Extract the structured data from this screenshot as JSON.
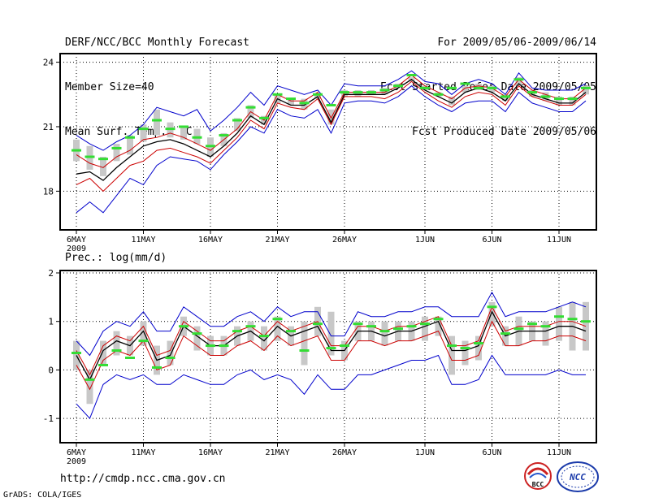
{
  "header": {
    "left": [
      "DERF/NCC/BCC Monthly Forecast",
      "Member Size=40",
      "Mean Surf. Temp.: °C"
    ],
    "right": [
      "For 2009/05/06-2009/06/14",
      "Fcst Started Refer Date 2009/05/05",
      "Fcst Produced Date 2009/05/06"
    ]
  },
  "prec_label": "Prec.: log(mm/d)",
  "footer": {
    "url": "http://cmdp.ncc.cma.gov.cn",
    "credit": "GrADS: COLA/IGES"
  },
  "logos": {
    "bcc": "BCC",
    "ncc": "NCC"
  },
  "colors": {
    "ensemble_max": "#0000cc",
    "ensemble_min": "#0000cc",
    "mean": "#000000",
    "spread": "#cc0000",
    "box": "#c8c8c8",
    "observed": "#33dd33"
  },
  "chart_data": [
    {
      "type": "line",
      "title": "Mean Surf. Temp.: °C",
      "xlabel": "",
      "ylabel": "",
      "x_ticks": [
        {
          "day": 0,
          "label": "6MAY",
          "sub": "2009"
        },
        {
          "day": 5,
          "label": "11MAY"
        },
        {
          "day": 10,
          "label": "16MAY"
        },
        {
          "day": 15,
          "label": "21MAY"
        },
        {
          "day": 20,
          "label": "26MAY"
        },
        {
          "day": 26,
          "label": "1JUN"
        },
        {
          "day": 31,
          "label": "6JUN"
        },
        {
          "day": 36,
          "label": "11JUN"
        }
      ],
      "xlim": [
        0,
        39
      ],
      "ylim": [
        16.2,
        24.4
      ],
      "yticks": [
        18,
        21,
        24
      ],
      "grid": true,
      "series": [
        {
          "name": "ensemble-max",
          "role": "max",
          "values": [
            20.6,
            20.2,
            19.9,
            20.3,
            20.6,
            21.1,
            21.9,
            21.7,
            21.5,
            21.8,
            20.8,
            21.3,
            21.9,
            22.6,
            22.0,
            22.9,
            22.7,
            22.5,
            22.7,
            22.0,
            23.0,
            22.9,
            22.9,
            22.9,
            23.2,
            23.6,
            23.1,
            23.0,
            22.5,
            23.0,
            23.2,
            23.0,
            22.5,
            23.5,
            22.8,
            22.7,
            22.7,
            22.7,
            23.0
          ]
        },
        {
          "name": "mean-plus",
          "role": "spread",
          "values": [
            19.7,
            19.3,
            19.1,
            19.6,
            19.9,
            20.4,
            20.5,
            20.7,
            20.5,
            20.2,
            19.9,
            20.4,
            20.9,
            21.7,
            21.3,
            22.5,
            22.2,
            22.2,
            22.6,
            21.4,
            22.6,
            22.6,
            22.6,
            22.6,
            22.9,
            23.4,
            22.9,
            22.6,
            22.3,
            22.8,
            22.9,
            22.8,
            22.4,
            23.2,
            22.7,
            22.5,
            22.3,
            22.3,
            22.8
          ]
        },
        {
          "name": "ensemble-mean",
          "role": "mean",
          "values": [
            18.8,
            18.9,
            18.5,
            19.1,
            19.6,
            20.1,
            20.3,
            20.4,
            20.2,
            19.9,
            19.6,
            20.1,
            20.7,
            21.5,
            21.1,
            22.3,
            22.0,
            22.0,
            22.4,
            21.2,
            22.5,
            22.5,
            22.5,
            22.5,
            22.8,
            23.2,
            22.7,
            22.4,
            22.1,
            22.6,
            22.8,
            22.6,
            22.2,
            23.0,
            22.5,
            22.3,
            22.1,
            22.1,
            22.6
          ]
        },
        {
          "name": "mean-minus",
          "role": "spread",
          "values": [
            18.3,
            18.6,
            18.0,
            18.6,
            19.2,
            19.4,
            19.9,
            20.0,
            19.8,
            19.6,
            19.3,
            19.9,
            20.5,
            21.3,
            20.9,
            22.1,
            21.9,
            21.8,
            22.3,
            21.1,
            22.4,
            22.4,
            22.4,
            22.3,
            22.6,
            23.1,
            22.6,
            22.2,
            21.9,
            22.4,
            22.6,
            22.5,
            22.0,
            22.9,
            22.4,
            22.2,
            22.0,
            22.0,
            22.5
          ]
        },
        {
          "name": "ensemble-min",
          "role": "min",
          "values": [
            17.0,
            17.5,
            17.0,
            17.8,
            18.6,
            18.3,
            19.2,
            19.6,
            19.5,
            19.4,
            19.0,
            19.7,
            20.3,
            21.0,
            20.7,
            21.8,
            21.5,
            21.4,
            21.8,
            20.7,
            22.1,
            22.2,
            22.2,
            22.1,
            22.4,
            22.9,
            22.4,
            22.0,
            21.7,
            22.1,
            22.2,
            22.2,
            21.7,
            22.6,
            22.1,
            21.9,
            21.7,
            21.7,
            22.2
          ]
        }
      ],
      "boxes": [
        [
          19.4,
          20.4
        ],
        [
          19.0,
          20.1
        ],
        [
          18.7,
          19.6
        ],
        [
          19.4,
          20.2
        ],
        [
          19.7,
          20.6
        ],
        [
          20.3,
          21.1
        ],
        [
          20.6,
          21.8
        ],
        [
          20.5,
          21.2
        ],
        [
          20.4,
          21.0
        ],
        [
          20.2,
          20.9
        ],
        [
          19.6,
          20.5
        ],
        [
          20.1,
          20.7
        ],
        [
          20.8,
          21.4
        ],
        [
          21.4,
          22.0
        ],
        [
          21.1,
          21.5
        ],
        [
          22.1,
          22.5
        ],
        [
          22.0,
          22.3
        ],
        [
          21.8,
          22.3
        ],
        [
          22.3,
          22.5
        ],
        [
          21.1,
          21.8
        ],
        [
          22.4,
          22.7
        ],
        [
          22.4,
          22.7
        ],
        [
          22.5,
          22.7
        ],
        [
          22.5,
          22.8
        ],
        [
          22.8,
          23.0
        ],
        [
          23.1,
          23.3
        ],
        [
          22.7,
          22.9
        ],
        [
          22.4,
          22.6
        ],
        [
          22.0,
          22.4
        ],
        [
          22.6,
          22.9
        ],
        [
          22.7,
          23.0
        ],
        [
          22.6,
          22.9
        ],
        [
          22.2,
          22.5
        ],
        [
          22.9,
          23.3
        ],
        [
          22.4,
          22.7
        ],
        [
          22.2,
          22.6
        ],
        [
          22.0,
          22.4
        ],
        [
          22.0,
          22.4
        ],
        [
          22.5,
          22.9
        ]
      ],
      "observed": [
        19.9,
        19.6,
        19.5,
        20.0,
        20.5,
        20.9,
        21.3,
        20.9,
        21.0,
        20.5,
        20.1,
        20.6,
        21.3,
        21.9,
        21.4,
        22.5,
        22.3,
        22.1,
        22.5,
        22.0,
        22.6,
        22.6,
        22.6,
        22.7,
        22.9,
        23.4,
        22.8,
        22.5,
        22.8,
        23.0,
        22.8,
        22.8,
        22.4,
        23.2,
        22.6,
        22.4,
        22.3,
        22.3,
        22.8
      ]
    },
    {
      "type": "line",
      "title": "Prec.: log(mm/d)",
      "xlabel": "",
      "ylabel": "",
      "x_ticks": [
        {
          "day": 0,
          "label": "6MAY",
          "sub": "2009"
        },
        {
          "day": 5,
          "label": "11MAY"
        },
        {
          "day": 10,
          "label": "16MAY"
        },
        {
          "day": 15,
          "label": "21MAY"
        },
        {
          "day": 20,
          "label": "26MAY"
        },
        {
          "day": 26,
          "label": "1JUN"
        },
        {
          "day": 31,
          "label": "6JUN"
        },
        {
          "day": 36,
          "label": "11JUN"
        }
      ],
      "xlim": [
        0,
        39
      ],
      "ylim": [
        -1.5,
        2.05
      ],
      "yticks": [
        -1,
        0,
        1,
        2
      ],
      "grid": true,
      "series": [
        {
          "name": "ensemble-max",
          "role": "max",
          "values": [
            0.6,
            0.3,
            0.8,
            1.0,
            0.9,
            1.2,
            0.8,
            0.8,
            1.3,
            1.1,
            0.9,
            0.9,
            1.1,
            1.2,
            1.0,
            1.3,
            1.1,
            1.2,
            1.2,
            0.7,
            0.7,
            1.2,
            1.1,
            1.1,
            1.2,
            1.2,
            1.3,
            1.3,
            1.1,
            1.1,
            1.1,
            1.6,
            1.1,
            1.2,
            1.2,
            1.2,
            1.3,
            1.4,
            1.3
          ]
        },
        {
          "name": "mean-plus",
          "role": "spread",
          "values": [
            0.4,
            -0.1,
            0.5,
            0.7,
            0.6,
            0.9,
            0.3,
            0.4,
            1.0,
            0.8,
            0.6,
            0.6,
            0.8,
            0.9,
            0.7,
            1.0,
            0.8,
            0.9,
            1.0,
            0.5,
            0.5,
            0.9,
            0.9,
            0.8,
            0.9,
            0.9,
            1.0,
            1.1,
            0.5,
            0.5,
            0.6,
            1.3,
            0.8,
            0.9,
            0.9,
            0.9,
            1.0,
            1.0,
            0.9
          ]
        },
        {
          "name": "ensemble-mean",
          "role": "mean",
          "values": [
            0.3,
            -0.2,
            0.4,
            0.6,
            0.5,
            0.8,
            0.2,
            0.3,
            0.9,
            0.7,
            0.5,
            0.5,
            0.7,
            0.8,
            0.6,
            0.9,
            0.7,
            0.8,
            0.9,
            0.4,
            0.4,
            0.8,
            0.8,
            0.7,
            0.8,
            0.8,
            0.9,
            1.0,
            0.4,
            0.4,
            0.5,
            1.2,
            0.7,
            0.8,
            0.8,
            0.8,
            0.9,
            0.9,
            0.8
          ]
        },
        {
          "name": "mean-minus",
          "role": "spread",
          "values": [
            0.1,
            -0.4,
            0.2,
            0.4,
            0.3,
            0.6,
            0.0,
            0.1,
            0.7,
            0.5,
            0.3,
            0.3,
            0.5,
            0.6,
            0.4,
            0.7,
            0.5,
            0.6,
            0.7,
            0.2,
            0.2,
            0.6,
            0.6,
            0.5,
            0.6,
            0.6,
            0.7,
            0.8,
            0.2,
            0.2,
            0.3,
            1.0,
            0.5,
            0.5,
            0.6,
            0.6,
            0.7,
            0.7,
            0.6
          ]
        },
        {
          "name": "ensemble-min",
          "role": "min",
          "values": [
            -0.7,
            -1.0,
            -0.3,
            -0.1,
            -0.2,
            -0.1,
            -0.3,
            -0.3,
            -0.1,
            -0.2,
            -0.3,
            -0.3,
            -0.1,
            0.0,
            -0.2,
            -0.1,
            -0.2,
            -0.5,
            -0.1,
            -0.4,
            -0.4,
            -0.1,
            -0.1,
            0.0,
            0.1,
            0.2,
            0.2,
            0.3,
            -0.3,
            -0.3,
            -0.2,
            0.3,
            -0.1,
            -0.1,
            -0.1,
            -0.1,
            0.0,
            -0.1,
            -0.1
          ]
        }
      ],
      "boxes": [
        [
          0.0,
          0.6
        ],
        [
          -0.7,
          0.0
        ],
        [
          0.1,
          0.6
        ],
        [
          0.3,
          0.8
        ],
        [
          0.3,
          0.7
        ],
        [
          0.5,
          1.0
        ],
        [
          -0.1,
          0.5
        ],
        [
          0.1,
          0.6
        ],
        [
          0.7,
          1.1
        ],
        [
          0.4,
          0.9
        ],
        [
          0.3,
          0.7
        ],
        [
          0.3,
          0.7
        ],
        [
          0.5,
          0.9
        ],
        [
          0.6,
          1.0
        ],
        [
          0.4,
          0.9
        ],
        [
          0.6,
          1.1
        ],
        [
          0.5,
          0.9
        ],
        [
          0.1,
          1.0
        ],
        [
          0.7,
          1.3
        ],
        [
          0.3,
          1.2
        ],
        [
          0.2,
          0.6
        ],
        [
          0.6,
          1.0
        ],
        [
          0.6,
          1.0
        ],
        [
          0.5,
          1.0
        ],
        [
          0.6,
          1.0
        ],
        [
          0.6,
          1.0
        ],
        [
          0.6,
          1.1
        ],
        [
          0.7,
          1.1
        ],
        [
          -0.1,
          0.7
        ],
        [
          0.1,
          0.6
        ],
        [
          0.2,
          0.7
        ],
        [
          0.9,
          1.4
        ],
        [
          0.5,
          0.9
        ],
        [
          0.5,
          1.1
        ],
        [
          0.6,
          1.0
        ],
        [
          0.5,
          1.0
        ],
        [
          0.6,
          1.3
        ],
        [
          0.4,
          1.4
        ],
        [
          0.4,
          1.4
        ]
      ],
      "observed": [
        0.35,
        -0.2,
        0.1,
        0.4,
        0.25,
        0.6,
        0.05,
        0.25,
        0.9,
        0.75,
        0.5,
        0.5,
        0.8,
        0.9,
        0.7,
        1.05,
        0.8,
        0.4,
        0.95,
        0.45,
        0.5,
        0.95,
        0.9,
        0.8,
        0.85,
        0.9,
        0.95,
        1.05,
        0.5,
        0.45,
        0.55,
        1.3,
        0.75,
        0.85,
        0.95,
        0.9,
        1.1,
        1.05,
        1.0
      ]
    }
  ]
}
